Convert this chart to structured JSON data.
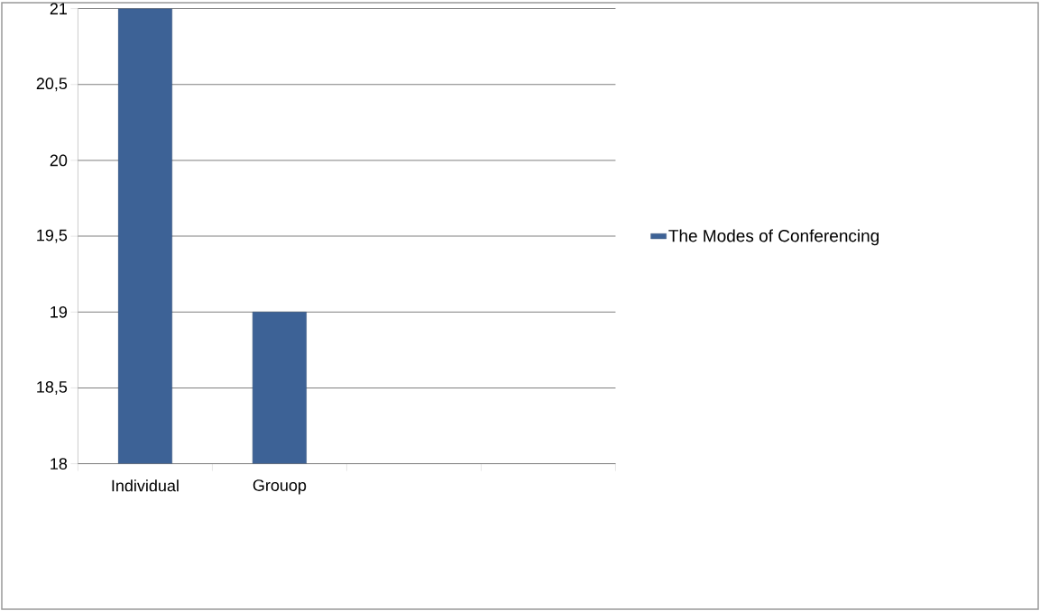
{
  "chart_data": {
    "type": "bar",
    "categories": [
      "Individual",
      "Grouop",
      null,
      null
    ],
    "series": [
      {
        "name": "The Modes of Conferencing",
        "color": "#3d6296",
        "values": [
          21,
          19,
          null,
          null
        ]
      }
    ],
    "ylim": [
      18,
      21
    ],
    "yticks": [
      18,
      {
        "value": 18.5,
        "label": "18,5"
      },
      19,
      {
        "value": 19.5,
        "label": "19,5"
      },
      20,
      {
        "value": 20.5,
        "label": "20,5"
      },
      21
    ],
    "grid": "y",
    "legend": "right"
  }
}
